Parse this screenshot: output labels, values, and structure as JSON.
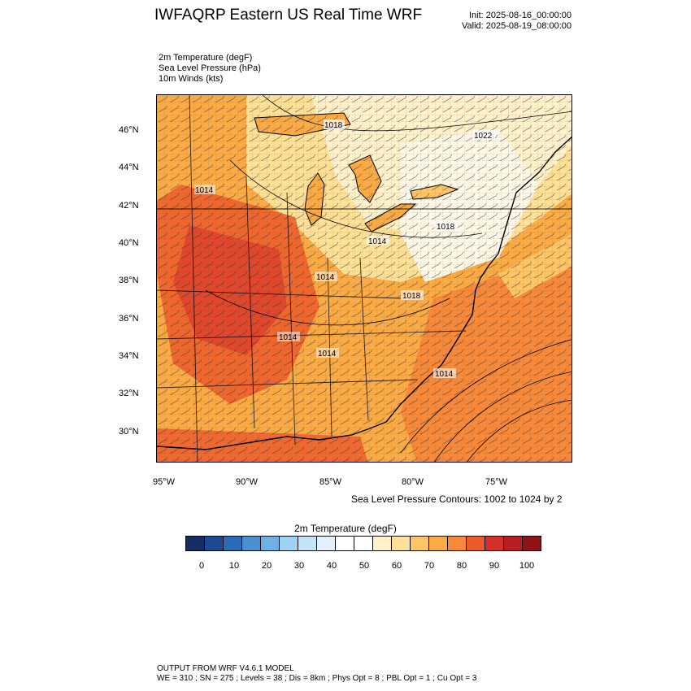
{
  "title": "IWFAQRP Eastern US Real Time WRF",
  "init_label": "Init: 2025-08-16_00:00:00",
  "valid_label": "Valid: 2025-08-19_08:00:00",
  "fields": [
    "2m Temperature   (degF)",
    "Sea Level Pressure   (hPa)",
    "10m Winds   (kts)"
  ],
  "map": {
    "lat_labels": [
      "46°N",
      "44°N",
      "42°N",
      "40°N",
      "38°N",
      "36°N",
      "34°N",
      "32°N",
      "30°N"
    ],
    "lon_labels": [
      "95°W",
      "90°W",
      "85°W",
      "80°W",
      "75°W"
    ],
    "pressure_labels": [
      "1018",
      "1022",
      "1014",
      "1018",
      "1014",
      "1014",
      "1018",
      "1014",
      "1014",
      "1014"
    ],
    "contour_note": "Sea Level Pressure Contours: 1002 to 1024 by 2"
  },
  "colorbar": {
    "title": "2m Temperature  (degF)",
    "ticks": [
      "0",
      "10",
      "20",
      "30",
      "40",
      "50",
      "60",
      "70",
      "80",
      "90",
      "100"
    ],
    "colors": [
      "#152d63",
      "#1f4a93",
      "#2c6bb5",
      "#4a90d0",
      "#6fb1e2",
      "#9fd2f2",
      "#c3e3f7",
      "#e2f1fb",
      "#ffffff",
      "#ffffff",
      "#fff1c9",
      "#ffe097",
      "#fdc565",
      "#fbab46",
      "#f7893a",
      "#eb5a2b",
      "#d4302a",
      "#b81d23",
      "#8e1416"
    ]
  },
  "footer": {
    "line1": "OUTPUT FROM WRF V4.6.1 MODEL",
    "line2": "WE = 310 ; SN = 275 ; Levels = 38 ; Dis = 8km ; Phys Opt = 8 ; PBL Opt = 1 ; Cu Opt = 3"
  }
}
